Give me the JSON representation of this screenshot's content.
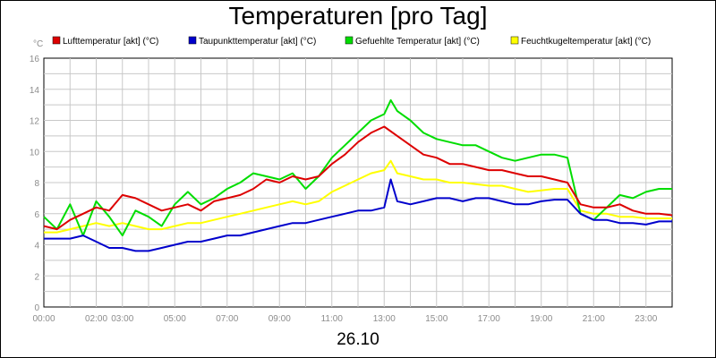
{
  "chart_data": {
    "type": "line",
    "title": "Temperaturen [pro Tag]",
    "unit_label": "°C",
    "date_label": "26.10",
    "ylim": [
      0,
      16
    ],
    "y_ticks": [
      "0",
      "2",
      "4",
      "6",
      "8",
      "10",
      "12",
      "14",
      "16"
    ],
    "xlim": [
      "00:00",
      "24:00"
    ],
    "x_ticks": [
      "00:00",
      "02:00",
      "03:00",
      "05:00",
      "07:00",
      "09:00",
      "11:00",
      "13:00",
      "15:00",
      "17:00",
      "19:00",
      "21:00",
      "23:00"
    ],
    "grid": true,
    "legend_position": "top",
    "series": [
      {
        "name": "Lufttemperatur [akt] (°C)",
        "color": "#dd0000",
        "x": [
          "00:00",
          "00:30",
          "01:00",
          "01:30",
          "02:00",
          "02:30",
          "03:00",
          "03:30",
          "04:00",
          "04:30",
          "05:00",
          "05:30",
          "06:00",
          "06:30",
          "07:00",
          "07:30",
          "08:00",
          "08:30",
          "09:00",
          "09:30",
          "10:00",
          "10:30",
          "11:00",
          "11:30",
          "12:00",
          "12:30",
          "13:00",
          "13:30",
          "14:00",
          "14:30",
          "15:00",
          "15:30",
          "16:00",
          "16:30",
          "17:00",
          "17:30",
          "18:00",
          "18:30",
          "19:00",
          "19:30",
          "20:00",
          "20:30",
          "21:00",
          "21:30",
          "22:00",
          "22:30",
          "23:00",
          "23:30",
          "24:00"
        ],
        "values": [
          5.2,
          5.0,
          5.6,
          6.0,
          6.4,
          6.2,
          7.2,
          7.0,
          6.6,
          6.2,
          6.4,
          6.6,
          6.2,
          6.8,
          7.0,
          7.2,
          7.6,
          8.2,
          8.0,
          8.4,
          8.2,
          8.4,
          9.2,
          9.8,
          10.6,
          11.2,
          11.6,
          11.0,
          10.4,
          9.8,
          9.6,
          9.2,
          9.2,
          9.0,
          8.8,
          8.8,
          8.6,
          8.4,
          8.4,
          8.2,
          8.0,
          6.6,
          6.4,
          6.4,
          6.6,
          6.2,
          6.0,
          6.0,
          5.9
        ]
      },
      {
        "name": "Taupunkttemperatur [akt] (°C)",
        "color": "#0000cc",
        "x": [
          "00:00",
          "00:30",
          "01:00",
          "01:30",
          "02:00",
          "02:30",
          "03:00",
          "03:30",
          "04:00",
          "04:30",
          "05:00",
          "05:30",
          "06:00",
          "06:30",
          "07:00",
          "07:30",
          "08:00",
          "08:30",
          "09:00",
          "09:30",
          "10:00",
          "10:30",
          "11:00",
          "11:30",
          "12:00",
          "12:30",
          "13:00",
          "13:15",
          "13:30",
          "14:00",
          "14:30",
          "15:00",
          "15:30",
          "16:00",
          "16:30",
          "17:00",
          "17:30",
          "18:00",
          "18:30",
          "19:00",
          "19:30",
          "20:00",
          "20:30",
          "21:00",
          "21:30",
          "22:00",
          "22:30",
          "23:00",
          "23:30",
          "24:00"
        ],
        "values": [
          4.4,
          4.4,
          4.4,
          4.6,
          4.2,
          3.8,
          3.8,
          3.6,
          3.6,
          3.8,
          4.0,
          4.2,
          4.2,
          4.4,
          4.6,
          4.6,
          4.8,
          5.0,
          5.2,
          5.4,
          5.4,
          5.6,
          5.8,
          6.0,
          6.2,
          6.2,
          6.4,
          8.2,
          6.8,
          6.6,
          6.8,
          7.0,
          7.0,
          6.8,
          7.0,
          7.0,
          6.8,
          6.6,
          6.6,
          6.8,
          6.9,
          6.9,
          6.0,
          5.6,
          5.6,
          5.4,
          5.4,
          5.3,
          5.5,
          5.5
        ]
      },
      {
        "name": "Gefuehlte Temperatur [akt] (°C)",
        "color": "#00dd00",
        "x": [
          "00:00",
          "00:30",
          "01:00",
          "01:30",
          "02:00",
          "02:30",
          "03:00",
          "03:30",
          "04:00",
          "04:30",
          "05:00",
          "05:30",
          "06:00",
          "06:30",
          "07:00",
          "07:30",
          "08:00",
          "08:30",
          "09:00",
          "09:30",
          "10:00",
          "10:30",
          "11:00",
          "11:30",
          "12:00",
          "12:30",
          "13:00",
          "13:15",
          "13:30",
          "14:00",
          "14:30",
          "15:00",
          "15:30",
          "16:00",
          "16:30",
          "17:00",
          "17:30",
          "18:00",
          "18:30",
          "19:00",
          "19:30",
          "20:00",
          "20:30",
          "21:00",
          "21:30",
          "22:00",
          "22:30",
          "23:00",
          "23:30",
          "24:00"
        ],
        "values": [
          5.8,
          5.0,
          6.6,
          4.6,
          6.8,
          5.8,
          4.6,
          6.2,
          5.8,
          5.2,
          6.6,
          7.4,
          6.6,
          7.0,
          7.6,
          8.0,
          8.6,
          8.4,
          8.2,
          8.6,
          7.6,
          8.4,
          9.6,
          10.4,
          11.2,
          12.0,
          12.4,
          13.3,
          12.6,
          12.0,
          11.2,
          10.8,
          10.6,
          10.4,
          10.4,
          10.0,
          9.6,
          9.4,
          9.6,
          9.8,
          9.8,
          9.6,
          6.0,
          5.6,
          6.4,
          7.2,
          7.0,
          7.4,
          7.6,
          7.6
        ]
      },
      {
        "name": "Feuchtkugeltemperatur [akt] (°C)",
        "color": "#ffff00",
        "x": [
          "00:00",
          "00:30",
          "01:00",
          "01:30",
          "02:00",
          "02:30",
          "03:00",
          "03:30",
          "04:00",
          "04:30",
          "05:00",
          "05:30",
          "06:00",
          "06:30",
          "07:00",
          "07:30",
          "08:00",
          "08:30",
          "09:00",
          "09:30",
          "10:00",
          "10:30",
          "11:00",
          "11:30",
          "12:00",
          "12:30",
          "13:00",
          "13:15",
          "13:30",
          "14:00",
          "14:30",
          "15:00",
          "15:30",
          "16:00",
          "16:30",
          "17:00",
          "17:30",
          "18:00",
          "18:30",
          "19:00",
          "19:30",
          "20:00",
          "20:30",
          "21:00",
          "21:30",
          "22:00",
          "22:30",
          "23:00",
          "23:30",
          "24:00"
        ],
        "values": [
          4.8,
          4.8,
          5.0,
          5.2,
          5.4,
          5.2,
          5.4,
          5.2,
          5.0,
          5.0,
          5.2,
          5.4,
          5.4,
          5.6,
          5.8,
          6.0,
          6.2,
          6.4,
          6.6,
          6.8,
          6.6,
          6.8,
          7.4,
          7.8,
          8.2,
          8.6,
          8.8,
          9.4,
          8.6,
          8.4,
          8.2,
          8.2,
          8.0,
          8.0,
          7.9,
          7.8,
          7.8,
          7.6,
          7.4,
          7.5,
          7.6,
          7.6,
          6.2,
          6.0,
          6.0,
          5.8,
          5.8,
          5.7,
          5.7,
          5.7
        ]
      }
    ]
  }
}
